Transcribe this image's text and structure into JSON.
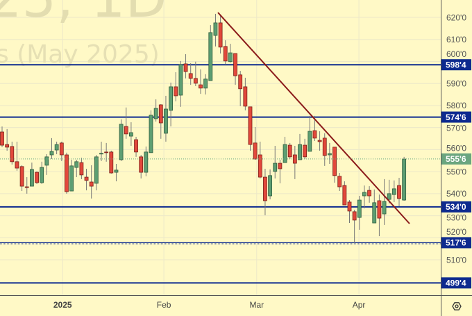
{
  "watermark": {
    "line1": "25, 1D",
    "line2": "s (May 2025)"
  },
  "colors": {
    "background": "#fff9c6",
    "up": "#5d9e72",
    "down": "#e2483b",
    "level_line": "#0d2a8f",
    "trendline": "#8b1a1a",
    "last_price": "#6aa57f"
  },
  "settings_icon": "gear-icon",
  "chart_data": {
    "type": "candlestick",
    "title": "",
    "ylim": [
      495,
      624
    ],
    "y_ticks": [
      510,
      520,
      530,
      540,
      550,
      560,
      570,
      580,
      590,
      600,
      610,
      620
    ],
    "y_tick_labels": [
      "510'0",
      "520'0",
      "530'0",
      "540'0",
      "550'0",
      "560'0",
      "570'0",
      "580'0",
      "590'0",
      "600'0",
      "610'0",
      "620'0"
    ],
    "x_ticks": [
      {
        "index": 12.2,
        "label": "2025",
        "bold": true
      },
      {
        "index": 32.6,
        "label": "Feb",
        "bold": false
      },
      {
        "index": 51.3,
        "label": "Mar",
        "bold": false
      },
      {
        "index": 71.9,
        "label": "Apr",
        "bold": false
      }
    ],
    "ohlc": [
      [
        568.0,
        570.5,
        561.1,
        562.0
      ],
      [
        562.3,
        569.3,
        559.5,
        561.1
      ],
      [
        561.4,
        563.6,
        553.2,
        554.5
      ],
      [
        554.5,
        563.6,
        550.4,
        551.6
      ],
      [
        552.3,
        552.9,
        541.2,
        543.4
      ],
      [
        543.1,
        547.5,
        540.0,
        543.0
      ],
      [
        543.4,
        554.1,
        543.4,
        551.0
      ],
      [
        549.7,
        550.1,
        544.4,
        545.0
      ],
      [
        545.0,
        554.5,
        544.4,
        551.9
      ],
      [
        552.9,
        557.9,
        548.5,
        556.7
      ],
      [
        557.6,
        565.2,
        555.7,
        559.2
      ],
      [
        559.8,
        563.6,
        557.9,
        562.3
      ],
      [
        563.0,
        563.6,
        554.8,
        557.6
      ],
      [
        557.6,
        558.6,
        540.0,
        540.9
      ],
      [
        541.2,
        555.4,
        541.2,
        552.6
      ],
      [
        551.9,
        555.4,
        547.5,
        554.5
      ],
      [
        554.1,
        556.3,
        546.6,
        548.5
      ],
      [
        547.5,
        551.3,
        541.5,
        546.0
      ],
      [
        545.3,
        552.9,
        537.8,
        543.4
      ],
      [
        544.7,
        557.6,
        541.5,
        556.7
      ],
      [
        558.2,
        563.6,
        554.8,
        558.3
      ],
      [
        558.9,
        563.0,
        554.5,
        558.8
      ],
      [
        558.9,
        559.5,
        549.1,
        549.4
      ],
      [
        549.7,
        553.5,
        545.6,
        550.7
      ],
      [
        555.4,
        573.7,
        554.8,
        571.5
      ],
      [
        570.5,
        579.1,
        564.9,
        567.1
      ],
      [
        566.1,
        572.4,
        561.7,
        567.7
      ],
      [
        564.5,
        565.8,
        556.7,
        558.9
      ],
      [
        556.7,
        557.6,
        546.9,
        549.7
      ],
      [
        549.7,
        561.4,
        547.9,
        558.9
      ],
      [
        558.6,
        577.8,
        558.6,
        575.6
      ],
      [
        574.0,
        582.8,
        572.7,
        578.7
      ],
      [
        580.3,
        580.6,
        564.9,
        572.1
      ],
      [
        567.4,
        584.4,
        563.6,
        578.4
      ],
      [
        577.8,
        590.4,
        570.5,
        588.5
      ],
      [
        588.5,
        595.1,
        581.9,
        584.4
      ],
      [
        584.7,
        600.2,
        579.4,
        598.6
      ],
      [
        598.9,
        603.3,
        592.3,
        595.4
      ],
      [
        594.5,
        599.2,
        589.4,
        592.3
      ],
      [
        592.3,
        599.9,
        588.8,
        590.1
      ],
      [
        589.4,
        596.4,
        585.3,
        587.9
      ],
      [
        587.9,
        594.2,
        585.0,
        592.0
      ],
      [
        591.3,
        616.5,
        591.3,
        613.1
      ],
      [
        611.8,
        621.6,
        606.8,
        617.5
      ],
      [
        617.5,
        621.0,
        603.6,
        606.5
      ],
      [
        606.8,
        609.6,
        598.6,
        600.2
      ],
      [
        599.9,
        608.0,
        599.5,
        603.9
      ],
      [
        603.6,
        603.6,
        589.4,
        593.5
      ],
      [
        593.9,
        595.7,
        579.7,
        587.6
      ],
      [
        588.5,
        592.6,
        577.8,
        579.7
      ],
      [
        579.4,
        579.4,
        559.5,
        562.3
      ],
      [
        563.0,
        570.2,
        555.4,
        555.7
      ],
      [
        557.6,
        563.6,
        546.9,
        547.5
      ],
      [
        547.5,
        551.3,
        530.2,
        536.8
      ],
      [
        539.0,
        551.0,
        537.4,
        548.2
      ],
      [
        550.1,
        561.7,
        546.9,
        553.8
      ],
      [
        553.8,
        555.4,
        544.7,
        551.3
      ],
      [
        554.1,
        565.8,
        554.1,
        562.3
      ],
      [
        562.0,
        563.0,
        555.7,
        556.7
      ],
      [
        557.6,
        561.7,
        546.6,
        553.8
      ],
      [
        555.4,
        567.1,
        555.4,
        562.3
      ],
      [
        562.0,
        564.9,
        555.7,
        556.7
      ],
      [
        559.2,
        575.3,
        559.2,
        568.3
      ],
      [
        568.6,
        575.3,
        563.9,
        565.2
      ],
      [
        564.2,
        568.3,
        559.5,
        563.6
      ],
      [
        565.2,
        567.4,
        552.6,
        557.3
      ],
      [
        557.6,
        563.0,
        553.5,
        558.2
      ],
      [
        561.1,
        561.1,
        545.0,
        548.2
      ],
      [
        547.9,
        549.4,
        541.2,
        543.1
      ],
      [
        543.7,
        545.6,
        534.9,
        534.9
      ],
      [
        536.2,
        537.1,
        526.7,
        532.1
      ],
      [
        531.8,
        532.7,
        517.6,
        528.0
      ],
      [
        529.2,
        539.0,
        523.6,
        537.1
      ],
      [
        539.0,
        543.7,
        533.3,
        540.6
      ],
      [
        541.5,
        543.4,
        535.9,
        539.0
      ],
      [
        526.7,
        541.9,
        526.7,
        535.9
      ],
      [
        536.8,
        539.6,
        520.7,
        528.9
      ],
      [
        530.8,
        546.6,
        525.8,
        536.5
      ],
      [
        537.4,
        546.3,
        535.5,
        540.0
      ],
      [
        539.6,
        546.0,
        536.2,
        542.2
      ],
      [
        543.7,
        547.2,
        534.3,
        537.8
      ],
      [
        537.1,
        556.7,
        536.8,
        555.7
      ]
    ],
    "levels": [
      {
        "value": 598.5,
        "label": "598'4",
        "dotted": false
      },
      {
        "value": 574.75,
        "label": "574'6",
        "dotted": false
      },
      {
        "value": 534.0,
        "label": "534'0",
        "dotted": false
      },
      {
        "value": 517.75,
        "label": "517'6",
        "dotted": true
      },
      {
        "value": 499.5,
        "label": "499'4",
        "dotted": false
      }
    ],
    "last_price": {
      "value": 555.75,
      "label": "555'6"
    },
    "trendline": {
      "start": {
        "index": 43.5,
        "price": 622.2
      },
      "end": {
        "index": 82.1,
        "price": 526.4
      }
    }
  }
}
